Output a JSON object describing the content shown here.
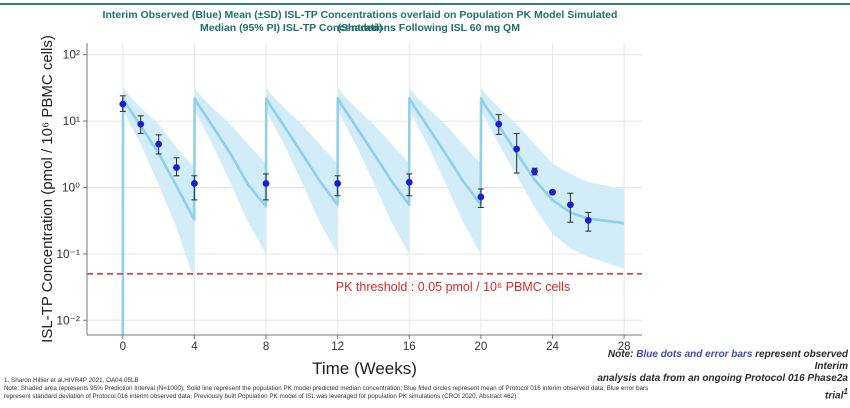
{
  "header": {
    "title_line1": "Interim Observed (Blue) Mean (±SD) ISL-TP Concentrations overlaid on Population PK Model Simulated (Shaded)",
    "title_line2": "Median (95% PI) ISL-TP Concentrations Following ISL 60 mg QM"
  },
  "chart_data": {
    "type": "scatter",
    "xlabel": "Time (Weeks)",
    "ylabel": "ISL-TP Concentration (pmol / 10⁶ PBMC cells)",
    "xlim": [
      -2,
      29
    ],
    "ylim": [
      0.006,
      150
    ],
    "y_scale": "log",
    "grid": true,
    "x_ticks": [
      0,
      4,
      8,
      12,
      16,
      20,
      24,
      28
    ],
    "x_tick_labels": [
      "0",
      "4",
      "8",
      "12",
      "16",
      "20",
      "24",
      "28"
    ],
    "y_ticks": [
      0.01,
      0.1,
      1,
      10,
      100
    ],
    "y_tick_labels": [
      "10⁻²",
      "10⁻¹",
      "10⁰",
      "10¹",
      "10²"
    ],
    "threshold": {
      "value": 0.05,
      "label": "PK threshold : 0.05 pmol / 10⁶ PBMC cells",
      "color": "#d42a2a"
    },
    "observed": {
      "color": "#1b1fd1",
      "x": [
        0,
        1,
        2,
        3,
        4,
        8,
        12,
        16,
        20,
        21,
        22,
        23,
        24,
        25,
        26
      ],
      "y": [
        18,
        9,
        4.5,
        2,
        1.15,
        1.15,
        1.15,
        1.2,
        0.72,
        9,
        3.8,
        1.75,
        0.85,
        0.55,
        0.32
      ],
      "y_low": [
        14,
        6.5,
        3.2,
        1.5,
        0.65,
        0.65,
        0.75,
        0.75,
        0.5,
        6.3,
        1.65,
        1.55,
        0.8,
        0.3,
        0.22
      ],
      "y_high": [
        24,
        12,
        6.2,
        2.8,
        1.5,
        1.6,
        1.5,
        1.6,
        0.95,
        12.5,
        6.5,
        1.95,
        0.9,
        0.82,
        0.42
      ]
    },
    "median": {
      "color": "#8fd0ea",
      "x": [
        0,
        0.01,
        0.25,
        0.5,
        1,
        2,
        3,
        3.99,
        4.01,
        4.25,
        4.5,
        5,
        6,
        7,
        7.99,
        8.01,
        8.25,
        8.5,
        9,
        10,
        11,
        11.99,
        12.01,
        12.25,
        12.5,
        13,
        14,
        15,
        15.99,
        16.01,
        16.25,
        16.5,
        17,
        18,
        19,
        19.99,
        20.01,
        20.25,
        20.5,
        21,
        22,
        23,
        24,
        25,
        26,
        28
      ],
      "y": [
        0.006,
        22,
        17,
        13.5,
        8.5,
        3.3,
        1.05,
        0.33,
        22,
        17,
        13.5,
        8.5,
        3.3,
        1.1,
        0.52,
        22,
        17,
        13.5,
        8.5,
        3.3,
        1.25,
        0.55,
        22,
        17,
        13.5,
        8.5,
        3.3,
        1.25,
        0.55,
        22,
        17,
        13.5,
        8.5,
        3.3,
        1.25,
        0.55,
        22,
        17,
        13.5,
        8.5,
        3.3,
        1.3,
        0.65,
        0.42,
        0.34,
        0.29
      ]
    },
    "prediction_interval": {
      "color": "#d2ecf8",
      "x": [
        0,
        0.01,
        0.25,
        0.5,
        1,
        2,
        3,
        3.99,
        4.01,
        4.25,
        4.5,
        5,
        6,
        7,
        7.99,
        8.01,
        8.25,
        8.5,
        9,
        10,
        11,
        11.99,
        12.01,
        12.25,
        12.5,
        13,
        14,
        15,
        15.99,
        16.01,
        16.25,
        16.5,
        17,
        18,
        19,
        19.99,
        20.01,
        20.25,
        20.5,
        21,
        22,
        23,
        24,
        25,
        26,
        28
      ],
      "low": [
        0.006,
        14,
        11,
        8,
        4.5,
        1.1,
        0.25,
        0.04,
        14,
        11,
        8,
        4.5,
        1.2,
        0.3,
        0.1,
        14,
        11,
        8,
        4.5,
        1.2,
        0.3,
        0.1,
        14,
        11,
        8,
        4.5,
        1.2,
        0.3,
        0.1,
        14,
        11,
        8,
        4.5,
        1.2,
        0.3,
        0.1,
        14,
        11,
        8,
        4.5,
        1.5,
        0.5,
        0.2,
        0.12,
        0.09,
        0.06
      ],
      "high": [
        0.006,
        32,
        26,
        22,
        16,
        9,
        4,
        2,
        32,
        26,
        22,
        16,
        9,
        4.5,
        2.3,
        32,
        26,
        22,
        16,
        9,
        4.5,
        2.3,
        32,
        26,
        22,
        16,
        9,
        4.5,
        2.3,
        32,
        26,
        22,
        16,
        9,
        4.5,
        2.3,
        32,
        26,
        22,
        16,
        9,
        4.5,
        2.3,
        1.6,
        1.2,
        0.95
      ]
    }
  },
  "note": {
    "prefix": "Note: ",
    "highlight": "Blue dots and error bars",
    "rest_line1": " represent observed Interim",
    "line2": "analysis data from an ongoing Protocol 016 Phase2a trial",
    "superscript": "1"
  },
  "footnotes": {
    "ref": "1. Sharon Hillier et al,HIVR4P 2021, OA04.05LB",
    "note_line1": "Note: Shaded area represents 95% Prediction Interval (N=1000); Solid line represent the population PK model predicted median concentration; Blue filled circles represent mean of Protocol 016 interim observed data; Blue error bars",
    "note_line2": "represent standard deviation of Protocol 016 interim observed data; Previously built Population PK model of ISL was leveraged for population PK simulations (CROI 2020, Abstract 462)"
  }
}
